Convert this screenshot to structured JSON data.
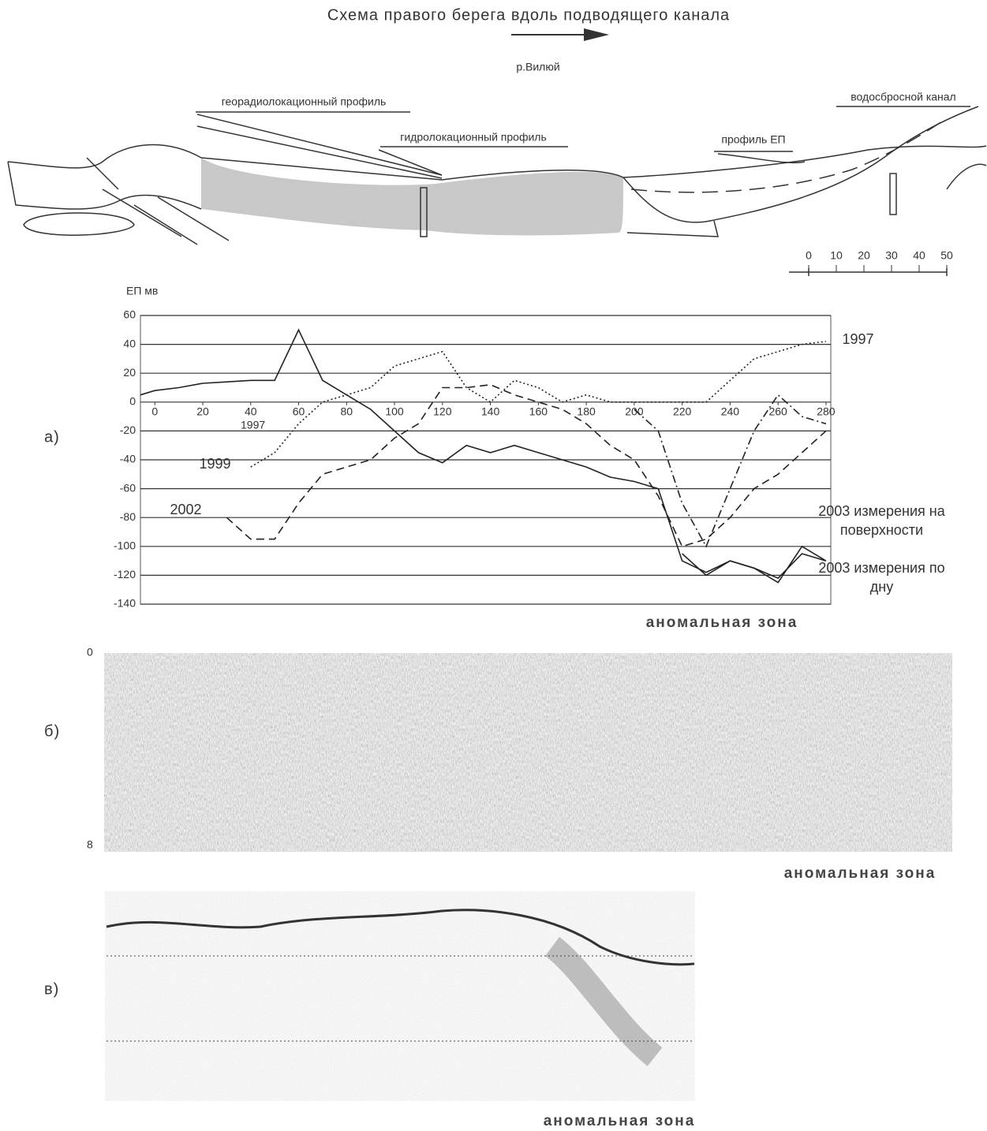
{
  "header": {
    "title": "Схема правого берега вдоль подводящего канала",
    "river": "р.Вилюй"
  },
  "scheme": {
    "labels": [
      "георадиолокационный профиль",
      "гидролокационный профиль",
      "профиль ЕП",
      "водосбросной канал"
    ],
    "scale": [
      0,
      10,
      20,
      30,
      40,
      50
    ]
  },
  "panels": {
    "a": "а)",
    "b": "б)",
    "c": "в)"
  },
  "chart_data": {
    "type": "line",
    "ylabel": "ЕП мв",
    "caption": "аномальная зона",
    "annotations": [
      "1997"
    ],
    "x": [
      -6,
      0,
      10,
      20,
      30,
      40,
      50,
      60,
      70,
      80,
      90,
      100,
      110,
      120,
      130,
      140,
      150,
      160,
      170,
      180,
      190,
      200,
      210,
      220,
      230,
      240,
      250,
      260,
      270,
      280
    ],
    "xlim": [
      -6,
      282
    ],
    "xticks": [
      0,
      20,
      40,
      60,
      80,
      100,
      120,
      140,
      160,
      180,
      200,
      220,
      240,
      260,
      280
    ],
    "ylim": [
      -140,
      60
    ],
    "yticks": [
      60,
      40,
      20,
      0,
      -20,
      -40,
      -60,
      -80,
      -100,
      -120,
      -140
    ],
    "grid": true,
    "series": [
      {
        "name": "1997",
        "color": "#222",
        "dash": "none",
        "values": [
          5,
          8,
          10,
          13,
          14,
          15,
          15,
          50,
          15,
          5,
          -5,
          -20,
          -35,
          -42,
          -30,
          -35,
          -30,
          -35,
          -40,
          -45,
          -52,
          -55,
          -60,
          -110,
          -118,
          -110,
          -115,
          -122,
          -105,
          -110
        ]
      },
      {
        "name": "1999",
        "color": "#222",
        "dash": "2,3",
        "values": [
          null,
          null,
          null,
          null,
          null,
          -45,
          -35,
          -15,
          0,
          5,
          10,
          25,
          30,
          35,
          10,
          0,
          15,
          10,
          0,
          5,
          0,
          0,
          0,
          0,
          0,
          15,
          30,
          35,
          40,
          42
        ]
      },
      {
        "name": "2002",
        "color": "#222",
        "dash": "10,6",
        "values": [
          null,
          null,
          null,
          null,
          -80,
          -95,
          -95,
          -70,
          -50,
          -45,
          -40,
          -25,
          -15,
          10,
          10,
          12,
          5,
          0,
          -5,
          -15,
          -30,
          -40,
          -65,
          -100,
          -95,
          -80,
          -60,
          -50,
          -35,
          -20
        ]
      },
      {
        "name": "2003 измерения на поверхности",
        "color": "#222",
        "dash": "10,4,2,4",
        "values": [
          null,
          null,
          null,
          null,
          null,
          null,
          null,
          null,
          null,
          null,
          null,
          null,
          null,
          null,
          null,
          null,
          null,
          null,
          null,
          null,
          null,
          -5,
          -20,
          -70,
          -100,
          -60,
          -20,
          5,
          -10,
          -15
        ]
      },
      {
        "name": "2003 измерения по дну",
        "color": "#222",
        "dash": "none",
        "values": [
          null,
          null,
          null,
          null,
          null,
          null,
          null,
          null,
          null,
          null,
          null,
          null,
          null,
          null,
          null,
          null,
          null,
          null,
          null,
          null,
          null,
          null,
          null,
          -105,
          -120,
          -110,
          -115,
          -125,
          -100,
          -110
        ]
      }
    ]
  },
  "radargram_b": {
    "depth_top": "0",
    "depth_bottom": "8",
    "caption": "аномальная зона"
  },
  "radargram_c": {
    "caption": "аномальная зона"
  }
}
